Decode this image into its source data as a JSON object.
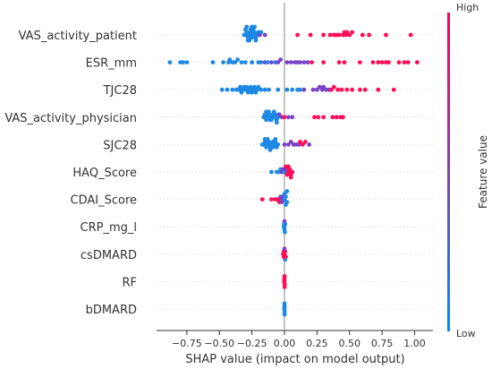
{
  "chart_data": {
    "type": "scatter",
    "subtype": "shap-beeswarm",
    "xlabel": "SHAP value (impact on model output)",
    "xlim": [
      -1.0,
      1.1
    ],
    "xticks": [
      -0.75,
      -0.5,
      -0.25,
      0.0,
      0.25,
      0.5,
      0.75,
      1.0
    ],
    "xtick_labels": [
      "−0.75",
      "−0.50",
      "−0.25",
      "0.00",
      "0.25",
      "0.50",
      "0.75",
      "1.00"
    ],
    "features": [
      "VAS_activity_patient",
      "ESR_mm",
      "TJC28",
      "VAS_activity_physician",
      "SJC28",
      "HAQ_Score",
      "CDAI_Score",
      "CRP_mg_l",
      "csDMARD",
      "RF",
      "bDMARD"
    ],
    "colorbar": {
      "label": "Feature value",
      "high_label": "High",
      "low_label": "Low",
      "high_color": "#ff0052",
      "low_color": "#008afb"
    },
    "colors": {
      "low": "#1e88e5",
      "mid": "#7a42c6",
      "high": "#ff0d57"
    },
    "series": [
      {
        "feature": "VAS_activity_patient",
        "points": [
          [
            -0.31,
            "low"
          ],
          [
            -0.3,
            "low"
          ],
          [
            -0.29,
            "low"
          ],
          [
            -0.28,
            "low"
          ],
          [
            -0.27,
            "low"
          ],
          [
            -0.26,
            "low"
          ],
          [
            -0.25,
            "low"
          ],
          [
            -0.24,
            "low"
          ],
          [
            -0.23,
            "low"
          ],
          [
            -0.22,
            "low"
          ],
          [
            -0.3,
            "low"
          ],
          [
            -0.28,
            "low"
          ],
          [
            -0.26,
            "low"
          ],
          [
            -0.24,
            "low"
          ],
          [
            -0.22,
            "low"
          ],
          [
            -0.29,
            "low"
          ],
          [
            -0.27,
            "low"
          ],
          [
            -0.25,
            "low"
          ],
          [
            -0.23,
            "low"
          ],
          [
            -0.21,
            "low"
          ],
          [
            -0.2,
            "low"
          ],
          [
            -0.19,
            "mid"
          ],
          [
            -0.18,
            "low"
          ],
          [
            -0.15,
            "mid"
          ],
          [
            0.1,
            "high"
          ],
          [
            0.2,
            "high"
          ],
          [
            0.3,
            "high"
          ],
          [
            0.35,
            "high"
          ],
          [
            0.38,
            "high"
          ],
          [
            0.4,
            "high"
          ],
          [
            0.42,
            "high"
          ],
          [
            0.45,
            "high"
          ],
          [
            0.47,
            "high"
          ],
          [
            0.48,
            "high"
          ],
          [
            0.46,
            "high"
          ],
          [
            0.5,
            "high"
          ],
          [
            0.52,
            "high"
          ],
          [
            0.6,
            "high"
          ],
          [
            0.65,
            "high"
          ],
          [
            0.78,
            "high"
          ],
          [
            0.97,
            "high"
          ]
        ]
      },
      {
        "feature": "ESR_mm",
        "points": [
          [
            -0.88,
            "low"
          ],
          [
            -0.8,
            "low"
          ],
          [
            -0.78,
            "low"
          ],
          [
            -0.75,
            "low"
          ],
          [
            -0.55,
            "low"
          ],
          [
            -0.47,
            "low"
          ],
          [
            -0.43,
            "low"
          ],
          [
            -0.42,
            "low"
          ],
          [
            -0.4,
            "low"
          ],
          [
            -0.38,
            "low"
          ],
          [
            -0.36,
            "low"
          ],
          [
            -0.33,
            "low"
          ],
          [
            -0.3,
            "low"
          ],
          [
            -0.25,
            "low"
          ],
          [
            -0.2,
            "low"
          ],
          [
            -0.18,
            "low"
          ],
          [
            -0.15,
            "mid"
          ],
          [
            -0.13,
            "low"
          ],
          [
            -0.1,
            "mid"
          ],
          [
            -0.07,
            "low"
          ],
          [
            -0.05,
            "mid"
          ],
          [
            -0.03,
            "mid"
          ],
          [
            0.02,
            "mid"
          ],
          [
            0.05,
            "mid"
          ],
          [
            0.08,
            "mid"
          ],
          [
            0.1,
            "mid"
          ],
          [
            0.12,
            "mid"
          ],
          [
            0.15,
            "mid"
          ],
          [
            0.18,
            "mid"
          ],
          [
            0.21,
            "high"
          ],
          [
            0.3,
            "high"
          ],
          [
            0.42,
            "high"
          ],
          [
            0.46,
            "high"
          ],
          [
            0.58,
            "high"
          ],
          [
            0.68,
            "high"
          ],
          [
            0.72,
            "high"
          ],
          [
            0.75,
            "high"
          ],
          [
            0.78,
            "high"
          ],
          [
            0.8,
            "high"
          ],
          [
            0.88,
            "high"
          ],
          [
            0.92,
            "high"
          ],
          [
            0.95,
            "high"
          ],
          [
            1.02,
            "high"
          ]
        ]
      },
      {
        "feature": "TJC28",
        "points": [
          [
            -0.48,
            "low"
          ],
          [
            -0.44,
            "low"
          ],
          [
            -0.4,
            "low"
          ],
          [
            -0.37,
            "low"
          ],
          [
            -0.35,
            "low"
          ],
          [
            -0.34,
            "low"
          ],
          [
            -0.33,
            "low"
          ],
          [
            -0.32,
            "low"
          ],
          [
            -0.31,
            "low"
          ],
          [
            -0.3,
            "low"
          ],
          [
            -0.29,
            "low"
          ],
          [
            -0.28,
            "low"
          ],
          [
            -0.27,
            "low"
          ],
          [
            -0.26,
            "low"
          ],
          [
            -0.25,
            "low"
          ],
          [
            -0.24,
            "low"
          ],
          [
            -0.23,
            "low"
          ],
          [
            -0.22,
            "low"
          ],
          [
            -0.21,
            "low"
          ],
          [
            -0.2,
            "low"
          ],
          [
            -0.18,
            "low"
          ],
          [
            -0.15,
            "low"
          ],
          [
            -0.12,
            "low"
          ],
          [
            -0.05,
            "low"
          ],
          [
            0.02,
            "low"
          ],
          [
            0.06,
            "low"
          ],
          [
            0.1,
            "low"
          ],
          [
            0.12,
            "low"
          ],
          [
            0.15,
            "mid"
          ],
          [
            0.22,
            "mid"
          ],
          [
            0.25,
            "mid"
          ],
          [
            0.27,
            "mid"
          ],
          [
            0.29,
            "mid"
          ],
          [
            0.3,
            "mid"
          ],
          [
            0.32,
            "mid"
          ],
          [
            0.34,
            "mid"
          ],
          [
            0.36,
            "high"
          ],
          [
            0.38,
            "high"
          ],
          [
            0.41,
            "high"
          ],
          [
            0.44,
            "high"
          ],
          [
            0.48,
            "high"
          ],
          [
            0.52,
            "high"
          ],
          [
            0.58,
            "high"
          ],
          [
            0.62,
            "high"
          ],
          [
            0.72,
            "high"
          ],
          [
            0.84,
            "high"
          ]
        ]
      },
      {
        "feature": "VAS_activity_physician",
        "points": [
          [
            -0.16,
            "low"
          ],
          [
            -0.15,
            "low"
          ],
          [
            -0.14,
            "low"
          ],
          [
            -0.13,
            "low"
          ],
          [
            -0.12,
            "low"
          ],
          [
            -0.11,
            "low"
          ],
          [
            -0.1,
            "low"
          ],
          [
            -0.09,
            "low"
          ],
          [
            -0.08,
            "low"
          ],
          [
            -0.07,
            "low"
          ],
          [
            -0.06,
            "low"
          ],
          [
            -0.05,
            "low"
          ],
          [
            -0.14,
            "low"
          ],
          [
            -0.12,
            "low"
          ],
          [
            -0.1,
            "low"
          ],
          [
            -0.08,
            "low"
          ],
          [
            -0.06,
            "low"
          ],
          [
            -0.04,
            "mid"
          ],
          [
            -0.02,
            "mid"
          ],
          [
            0.0,
            "high"
          ],
          [
            0.03,
            "mid"
          ],
          [
            0.06,
            "mid"
          ],
          [
            0.23,
            "high"
          ],
          [
            0.26,
            "high"
          ],
          [
            0.3,
            "high"
          ],
          [
            0.37,
            "high"
          ],
          [
            0.4,
            "high"
          ],
          [
            0.43,
            "high"
          ],
          [
            0.45,
            "high"
          ]
        ]
      },
      {
        "feature": "SJC28",
        "points": [
          [
            -0.17,
            "low"
          ],
          [
            -0.16,
            "low"
          ],
          [
            -0.15,
            "low"
          ],
          [
            -0.14,
            "low"
          ],
          [
            -0.13,
            "low"
          ],
          [
            -0.12,
            "low"
          ],
          [
            -0.11,
            "low"
          ],
          [
            -0.1,
            "low"
          ],
          [
            -0.09,
            "low"
          ],
          [
            -0.08,
            "low"
          ],
          [
            -0.07,
            "low"
          ],
          [
            -0.06,
            "low"
          ],
          [
            -0.15,
            "low"
          ],
          [
            -0.13,
            "low"
          ],
          [
            -0.11,
            "low"
          ],
          [
            -0.09,
            "low"
          ],
          [
            -0.07,
            "low"
          ],
          [
            -0.05,
            "low"
          ],
          [
            0.0,
            "mid"
          ],
          [
            0.03,
            "mid"
          ],
          [
            0.05,
            "mid"
          ],
          [
            0.07,
            "mid"
          ],
          [
            0.09,
            "mid"
          ],
          [
            0.11,
            "mid"
          ],
          [
            0.12,
            "high"
          ],
          [
            0.14,
            "high"
          ],
          [
            0.16,
            "high"
          ],
          [
            0.19,
            "mid"
          ]
        ]
      },
      {
        "feature": "HAQ_Score",
        "points": [
          [
            -0.1,
            "low"
          ],
          [
            -0.06,
            "low"
          ],
          [
            -0.04,
            "low"
          ],
          [
            -0.03,
            "low"
          ],
          [
            -0.02,
            "mid"
          ],
          [
            -0.01,
            "mid"
          ],
          [
            0.0,
            "low"
          ],
          [
            0.01,
            "mid"
          ],
          [
            0.02,
            "high"
          ],
          [
            0.03,
            "high"
          ],
          [
            0.04,
            "high"
          ],
          [
            0.05,
            "high"
          ],
          [
            0.06,
            "high"
          ],
          [
            0.01,
            "high"
          ],
          [
            0.03,
            "high"
          ],
          [
            0.05,
            "high"
          ]
        ]
      },
      {
        "feature": "CDAI_Score",
        "points": [
          [
            -0.17,
            "high"
          ],
          [
            -0.1,
            "high"
          ],
          [
            -0.07,
            "high"
          ],
          [
            -0.05,
            "high"
          ],
          [
            -0.03,
            "mid"
          ],
          [
            -0.02,
            "mid"
          ],
          [
            -0.01,
            "mid"
          ],
          [
            0.0,
            "low"
          ],
          [
            0.01,
            "low"
          ],
          [
            0.02,
            "low"
          ],
          [
            -0.04,
            "high"
          ],
          [
            -0.02,
            "mid"
          ],
          [
            0.0,
            "low"
          ],
          [
            0.01,
            "low"
          ],
          [
            0.02,
            "low"
          ]
        ]
      },
      {
        "feature": "CRP_mg_l",
        "points": [
          [
            -0.005,
            "low"
          ],
          [
            0.0,
            "low"
          ],
          [
            0.005,
            "low"
          ],
          [
            0.0,
            "low"
          ],
          [
            0.0,
            "mid"
          ],
          [
            0.003,
            "low"
          ],
          [
            -0.003,
            "low"
          ]
        ]
      },
      {
        "feature": "csDMARD",
        "points": [
          [
            -0.01,
            "high"
          ],
          [
            -0.005,
            "high"
          ],
          [
            0.0,
            "high"
          ],
          [
            0.005,
            "high"
          ],
          [
            0.01,
            "high"
          ],
          [
            0.0,
            "mid"
          ],
          [
            0.005,
            "low"
          ],
          [
            -0.005,
            "high"
          ]
        ]
      },
      {
        "feature": "RF",
        "points": [
          [
            0.0,
            "high"
          ],
          [
            0.0,
            "high"
          ],
          [
            0.002,
            "high"
          ],
          [
            -0.002,
            "high"
          ],
          [
            0.0,
            "high"
          ],
          [
            0.001,
            "high"
          ],
          [
            -0.001,
            "high"
          ]
        ]
      },
      {
        "feature": "bDMARD",
        "points": [
          [
            0.0,
            "low"
          ],
          [
            0.0,
            "low"
          ],
          [
            0.001,
            "low"
          ],
          [
            -0.001,
            "low"
          ],
          [
            0.0,
            "low"
          ],
          [
            0.001,
            "low"
          ]
        ]
      }
    ]
  }
}
